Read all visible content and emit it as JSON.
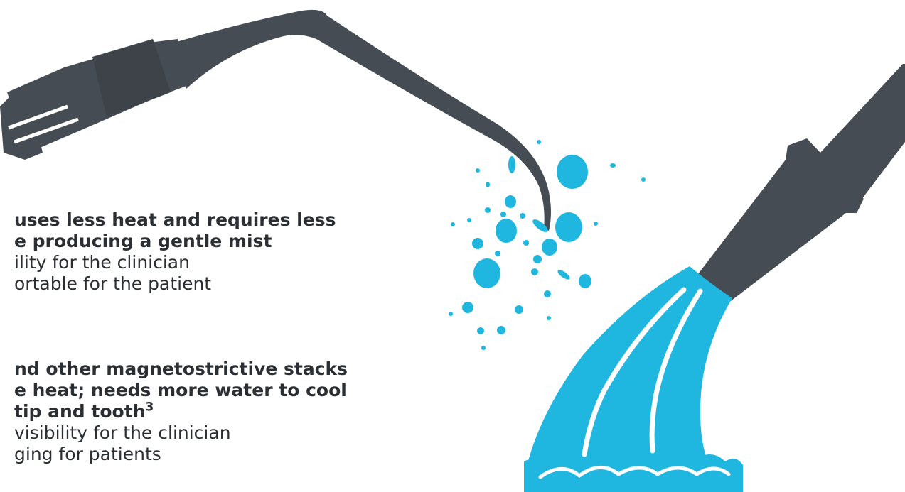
{
  "colors": {
    "instrument": "#454c53",
    "water": "#1fb7e0",
    "text": "#2b2f33",
    "background": "#ffffff"
  },
  "block1": {
    "heading_line1": "uses less heat and requires less",
    "heading_line2": "e producing a gentle mist",
    "bullet1": "ility for the clinician",
    "bullet2": "ortable for the patient"
  },
  "block2": {
    "heading_line1": "nd other magnetostrictive stacks",
    "heading_line2": "e heat; needs more water to cool",
    "heading_line3": "tip and tooth",
    "heading_line3_ref": "3",
    "bullet1": "visibility for the clinician",
    "bullet2": "ging for patients"
  },
  "icons": {
    "left": "ultrasonic-scaler-insert-icon",
    "right": "water-hose-icon"
  }
}
